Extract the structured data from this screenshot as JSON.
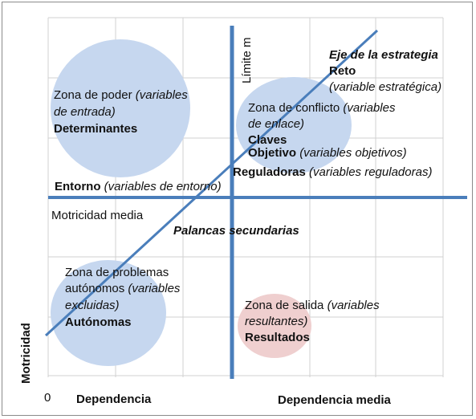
{
  "colors": {
    "axis_line": "#4a7ebb",
    "circle_blue": "#c6d7ef",
    "circle_pink": "#efcfcf",
    "grid": "#d0d0d0",
    "text": "#111111"
  },
  "axes": {
    "y_label": "Motricidad",
    "origin": "0",
    "x_label": "Dependencia",
    "x_mid_label": "Dependencia media",
    "y_mid_label": "Motricidad media",
    "limit_label": "Límite m"
  },
  "zones": {
    "power": {
      "title": "Zona de poder",
      "desc_a": "(variables",
      "desc_b": "de entrada)",
      "name": "Determinantes"
    },
    "conflict": {
      "title": "Zona de conflicto",
      "desc_a": "(variables",
      "desc_b": "de enlace)",
      "claves": "Claves",
      "objetivo": "Objetivo",
      "objetivo_desc": "(variables objetivos)",
      "reguladoras": "Reguladoras",
      "reguladoras_desc": "(variables reguladoras)"
    },
    "autonomous": {
      "title_a": "Zona de problemas",
      "title_b": "autónomos",
      "desc_a": "(variables",
      "desc_b": "excluidas)",
      "name": "Autónomas"
    },
    "output": {
      "title": "Zona de salida",
      "desc_a": "(variables",
      "desc_b": "resultantes)",
      "name": "Resultados"
    }
  },
  "strategy": {
    "axis_title": "Eje de la estrategia",
    "reto": "Reto",
    "reto_desc": "(variable estratégica)"
  },
  "entorno": {
    "name": "Entorno",
    "desc": "(variables de entorno)"
  },
  "palancas": "Palancas secundarias"
}
